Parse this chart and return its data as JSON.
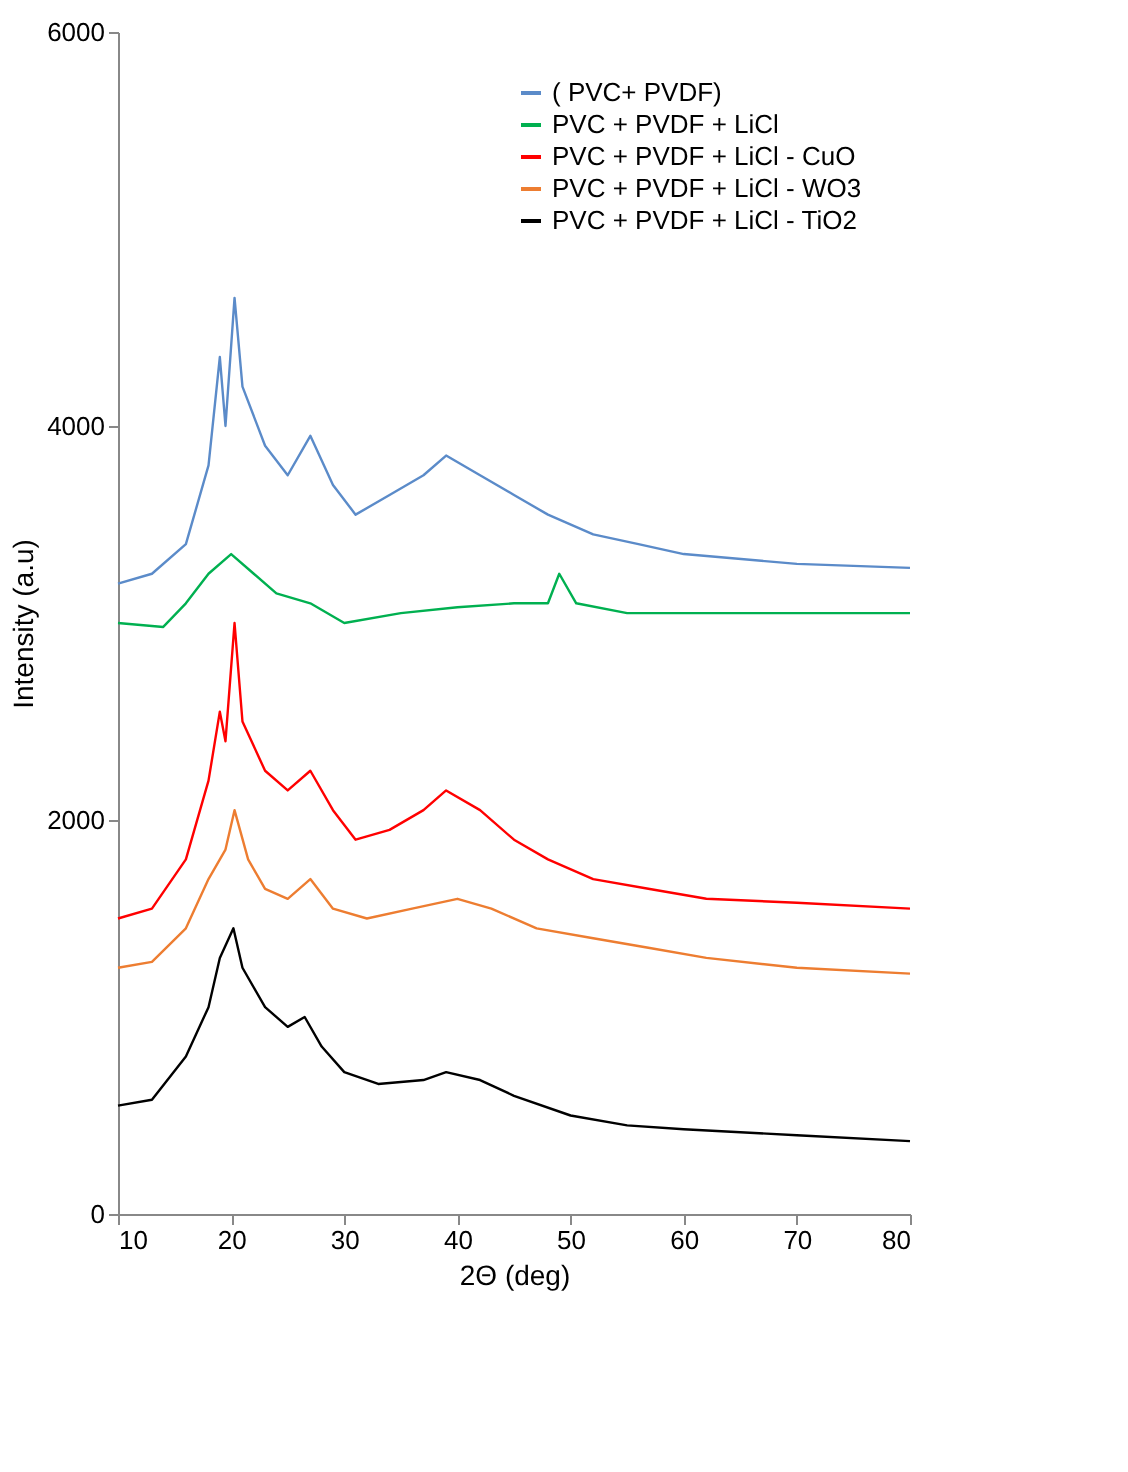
{
  "chart_data": {
    "type": "line",
    "xlabel": "2Θ (deg)",
    "ylabel": "Intensity (a.u)",
    "xlim": [
      10,
      80
    ],
    "ylim": [
      0,
      6000
    ],
    "xticks": [
      10,
      20,
      30,
      40,
      50,
      60,
      70,
      80
    ],
    "yticks": [
      0,
      2000,
      4000,
      6000
    ],
    "grid": false,
    "legend": "top right",
    "marker": "none",
    "line_style": "solid",
    "series": [
      {
        "name": "( PVC+ PVDF)",
        "color": "#5b8bc9",
        "x": [
          10,
          13,
          16,
          18,
          19,
          19.5,
          20.3,
          21,
          23,
          25,
          27,
          29,
          31,
          34,
          37,
          39,
          42,
          45,
          48,
          52,
          56,
          60,
          70,
          80
        ],
        "values": [
          3200,
          3250,
          3400,
          3800,
          4350,
          4000,
          4650,
          4200,
          3900,
          3750,
          3950,
          3700,
          3550,
          3650,
          3750,
          3850,
          3750,
          3650,
          3550,
          3450,
          3400,
          3350,
          3300,
          3280
        ]
      },
      {
        "name": "PVC + PVDF + LiCl",
        "color": "#00b050",
        "x": [
          10,
          14,
          16,
          18,
          20,
          22,
          24,
          27,
          30,
          35,
          40,
          45,
          48,
          49,
          50.5,
          55,
          65,
          80
        ],
        "values": [
          3000,
          2980,
          3100,
          3250,
          3350,
          3250,
          3150,
          3100,
          3000,
          3050,
          3080,
          3100,
          3100,
          3250,
          3100,
          3050,
          3050,
          3050
        ]
      },
      {
        "name": "PVC + PVDF + LiCl - CuO",
        "color": "#ff0000",
        "x": [
          10,
          13,
          16,
          18,
          19,
          19.5,
          20.3,
          21,
          23,
          25,
          27,
          29,
          31,
          34,
          37,
          39,
          42,
          45,
          48,
          52,
          57,
          62,
          70,
          80
        ],
        "values": [
          1500,
          1550,
          1800,
          2200,
          2550,
          2400,
          3000,
          2500,
          2250,
          2150,
          2250,
          2050,
          1900,
          1950,
          2050,
          2150,
          2050,
          1900,
          1800,
          1700,
          1650,
          1600,
          1580,
          1550
        ]
      },
      {
        "name": "PVC + PVDF + LiCl - WO3",
        "color": "#ed7d31",
        "x": [
          10,
          13,
          16,
          18,
          19.5,
          20.3,
          21.5,
          23,
          25,
          27,
          29,
          32,
          36,
          40,
          43,
          47,
          52,
          57,
          62,
          70,
          80
        ],
        "values": [
          1250,
          1280,
          1450,
          1700,
          1850,
          2050,
          1800,
          1650,
          1600,
          1700,
          1550,
          1500,
          1550,
          1600,
          1550,
          1450,
          1400,
          1350,
          1300,
          1250,
          1220
        ]
      },
      {
        "name": "PVC + PVDF + LiCl - TiO2",
        "color": "#000000",
        "x": [
          10,
          13,
          16,
          18,
          19,
          20.2,
          21,
          23,
          25,
          26.5,
          28,
          30,
          33,
          37,
          39,
          42,
          45,
          50,
          55,
          60,
          70,
          80
        ],
        "values": [
          550,
          580,
          800,
          1050,
          1300,
          1450,
          1250,
          1050,
          950,
          1000,
          850,
          720,
          660,
          680,
          720,
          680,
          600,
          500,
          450,
          430,
          400,
          370
        ]
      }
    ]
  }
}
